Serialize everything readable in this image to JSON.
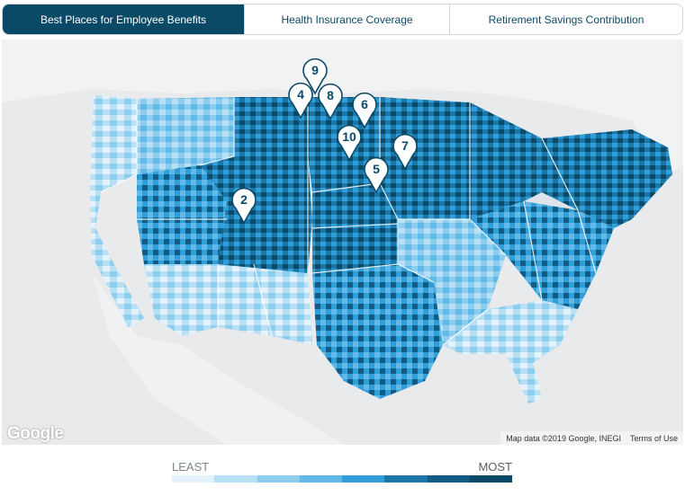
{
  "tabs": [
    {
      "label": "Best Places for Employee Benefits",
      "active": true
    },
    {
      "label": "Health Insurance Coverage",
      "active": false
    },
    {
      "label": "Retirement Savings Contribution",
      "active": false
    }
  ],
  "map": {
    "attribution": "Map data ©2019 Google, INEGI",
    "terms": "Terms of Use",
    "logo": "Google",
    "markers": [
      {
        "label": "9"
      },
      {
        "label": "4"
      },
      {
        "label": "8"
      },
      {
        "label": "6"
      },
      {
        "label": "10"
      },
      {
        "label": "7"
      },
      {
        "label": "5"
      },
      {
        "label": "2"
      }
    ]
  },
  "legend": {
    "low_label": "LEAST",
    "high_label": "MOST",
    "colors": [
      "#e4f3fb",
      "#b8e0f4",
      "#8dcdee",
      "#62b8e6",
      "#2f9ed9",
      "#1c76a8",
      "#125b82",
      "#0b4a66"
    ]
  }
}
